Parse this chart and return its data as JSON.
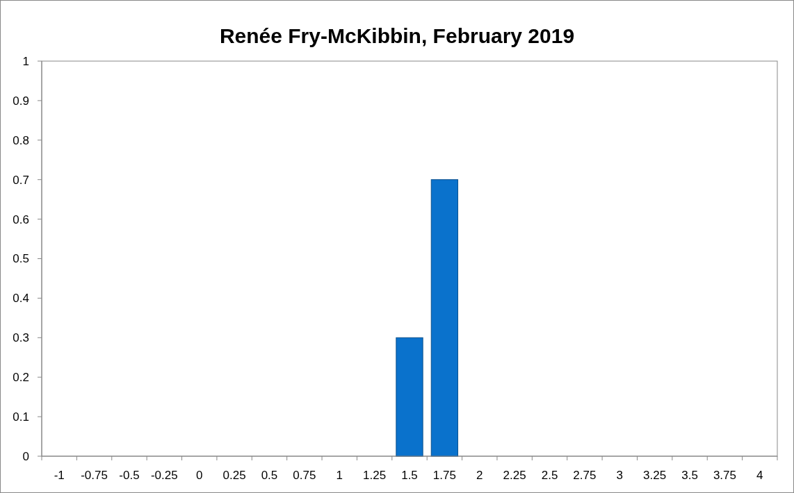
{
  "chart_data": {
    "type": "bar",
    "title": "Renée Fry-McKibbin, February 2019",
    "categories": [
      "-1",
      "-0.75",
      "-0.5",
      "-0.25",
      "0",
      "0.25",
      "0.5",
      "0.75",
      "1",
      "1.25",
      "1.5",
      "1.75",
      "2",
      "2.25",
      "2.5",
      "2.75",
      "3",
      "3.25",
      "3.5",
      "3.75",
      "4"
    ],
    "values": [
      0,
      0,
      0,
      0,
      0,
      0,
      0,
      0,
      0,
      0,
      0.3,
      0.7,
      0,
      0,
      0,
      0,
      0,
      0,
      0,
      0,
      0
    ],
    "color": "#0a72cc",
    "ylim": [
      0,
      1
    ],
    "yticks": [
      0,
      0.1,
      0.2,
      0.3,
      0.4,
      0.5,
      0.6,
      0.7,
      0.8,
      0.9,
      1
    ],
    "grid": false
  }
}
